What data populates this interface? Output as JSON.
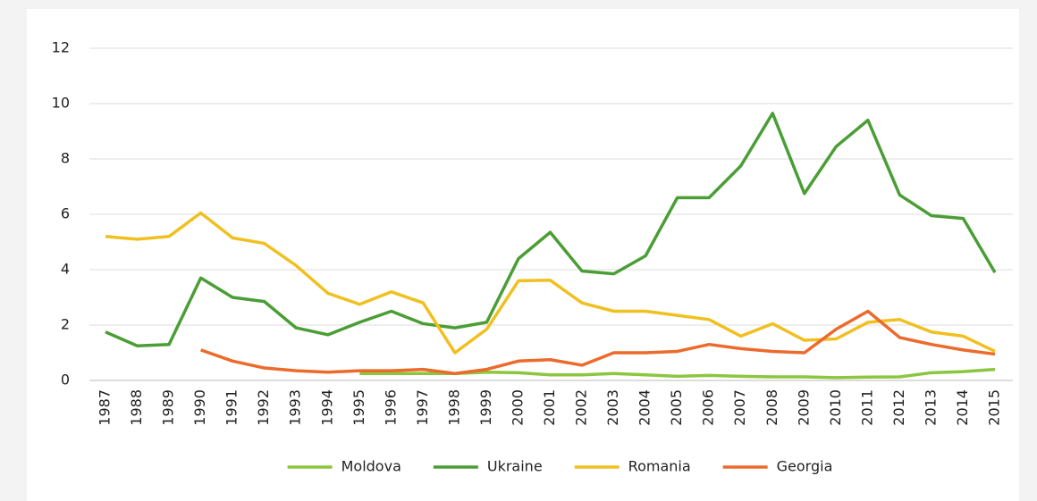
{
  "chart_data": {
    "type": "line",
    "categories": [
      "1987",
      "1988",
      "1989",
      "1990",
      "1991",
      "1992",
      "1993",
      "1994",
      "1995",
      "1996",
      "1997",
      "1998",
      "1999",
      "2000",
      "2001",
      "2002",
      "2003",
      "2004",
      "2005",
      "2006",
      "2007",
      "2008",
      "2009",
      "2010",
      "2011",
      "2012",
      "2013",
      "2014",
      "2015"
    ],
    "series": [
      {
        "name": "Moldova",
        "color": "#8cc63f",
        "values": [
          null,
          null,
          null,
          null,
          null,
          null,
          null,
          null,
          0.25,
          0.25,
          0.25,
          0.25,
          0.3,
          0.28,
          0.2,
          0.2,
          0.25,
          0.2,
          0.15,
          0.18,
          0.15,
          0.13,
          0.13,
          0.1,
          0.12,
          0.13,
          0.28,
          0.32,
          0.4
        ]
      },
      {
        "name": "Ukraine",
        "color": "#4a9e35",
        "values": [
          1.75,
          1.25,
          1.3,
          3.7,
          3.0,
          2.85,
          1.9,
          1.65,
          2.1,
          2.5,
          2.05,
          1.9,
          2.1,
          4.4,
          5.35,
          3.95,
          3.85,
          4.5,
          6.6,
          6.6,
          7.75,
          9.65,
          6.75,
          8.45,
          9.4,
          6.7,
          5.95,
          5.85,
          3.9
        ]
      },
      {
        "name": "Romania",
        "color": "#f0c020",
        "values": [
          5.2,
          5.1,
          5.2,
          6.05,
          5.15,
          4.95,
          4.15,
          3.15,
          2.75,
          3.2,
          2.8,
          1.0,
          1.85,
          3.6,
          3.62,
          2.8,
          2.5,
          2.5,
          2.35,
          2.2,
          1.6,
          2.05,
          1.45,
          1.5,
          2.1,
          2.2,
          1.75,
          1.6,
          1.05
        ]
      },
      {
        "name": "Georgia",
        "color": "#ec6a2b",
        "values": [
          null,
          null,
          null,
          1.1,
          0.7,
          0.45,
          0.35,
          0.3,
          0.35,
          0.35,
          0.4,
          0.25,
          0.4,
          0.7,
          0.75,
          0.55,
          1.0,
          1.0,
          1.05,
          1.3,
          1.15,
          1.05,
          1.0,
          1.85,
          2.5,
          1.55,
          1.3,
          1.1,
          0.95
        ]
      }
    ],
    "ylim": [
      0,
      12
    ],
    "yticks": [
      0,
      2,
      4,
      6,
      8,
      10,
      12
    ],
    "grid": true,
    "legend": "bottom"
  }
}
